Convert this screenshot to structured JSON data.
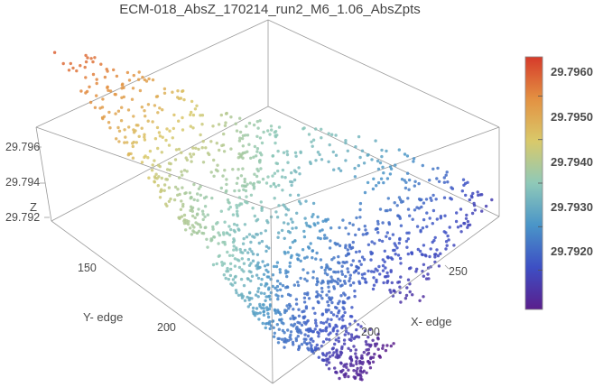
{
  "chart_data": {
    "type": "scatter",
    "plot_kind": "3d-surface-point-cloud",
    "title": "ECM-018_AbsZ_170214_run2_M6_1.06_AbsZpts",
    "xlabel": "X- edge",
    "ylabel": "Y- edge",
    "zlabel": "Z",
    "x_ticks": [
      "200",
      "250"
    ],
    "y_ticks": [
      "150",
      "200"
    ],
    "z_ticks": [
      "29.796",
      "29.794",
      "29.792"
    ],
    "xlim": [
      150,
      290
    ],
    "ylim": [
      120,
      225
    ],
    "zlim": [
      29.791,
      29.7968
    ],
    "colorbar": {
      "ticks": [
        "29.7960",
        "29.7950",
        "29.7940",
        "29.7930",
        "29.7920"
      ],
      "range": [
        29.7911,
        29.7969
      ],
      "colormap": [
        "#5a1e8c",
        "#3d4fc4",
        "#4a95c8",
        "#8fc9b8",
        "#d9c96a",
        "#e39142",
        "#d63a2a"
      ]
    },
    "grid": false,
    "surface_summary": {
      "high_corner": "x-min / y-min (~29.7965)",
      "low_region": "x-max / y-max (~29.7915)",
      "back_ridge": "x-max / y-min (~29.7918)"
    }
  }
}
